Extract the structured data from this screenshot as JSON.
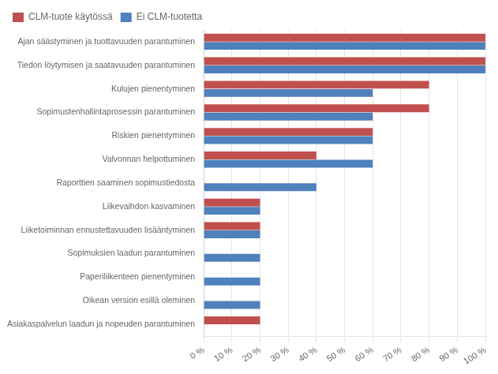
{
  "chart_data": {
    "type": "bar",
    "orientation": "horizontal",
    "categories": [
      "Ajan säästyminen ja tuottavuuden parantuminen",
      "Tiedon löytymisen ja saatavuuden parantuminen",
      "Kulujen pienentyminen",
      "Sopimustenhallintaprosessin parantuminen",
      "Riskien pienentyminen",
      "Valvonnan helpottuminen",
      "Raporttien saaminen sopimustiedosta",
      "Liikevaihdon kasvaminen",
      "Liiketoiminnan ennustettavuuden lisääntyminen",
      "Sopimuksien laadun parantuminen",
      "Paperiliikenteen pienentyminen",
      "Oikean version esillä oleminen",
      "Asiakaspalvelun laadun ja nopeuden parantuminen"
    ],
    "series": [
      {
        "name": "CLM-tuote käytössä",
        "color": "#c0504d",
        "values": [
          100,
          100,
          80,
          80,
          60,
          40,
          0,
          20,
          20,
          0,
          0,
          0,
          20
        ]
      },
      {
        "name": "Ei CLM-tuotetta",
        "color": "#4f81bd",
        "values": [
          100,
          100,
          60,
          60,
          60,
          60,
          40,
          20,
          20,
          20,
          20,
          20,
          0
        ]
      }
    ],
    "xlim": [
      0,
      100
    ],
    "xticks": [
      {
        "value": 0,
        "label": "0 %"
      },
      {
        "value": 10,
        "label": "10 %"
      },
      {
        "value": 20,
        "label": "20 %"
      },
      {
        "value": 30,
        "label": "30 %"
      },
      {
        "value": 40,
        "label": "40 %"
      },
      {
        "value": 50,
        "label": "50 %"
      },
      {
        "value": 60,
        "label": "60 %"
      },
      {
        "value": 70,
        "label": "70 %"
      },
      {
        "value": 80,
        "label": "80 %"
      },
      {
        "value": 90,
        "label": "90 %"
      },
      {
        "value": 100,
        "label": "100 %"
      }
    ],
    "grid": true,
    "legend": "top left"
  }
}
